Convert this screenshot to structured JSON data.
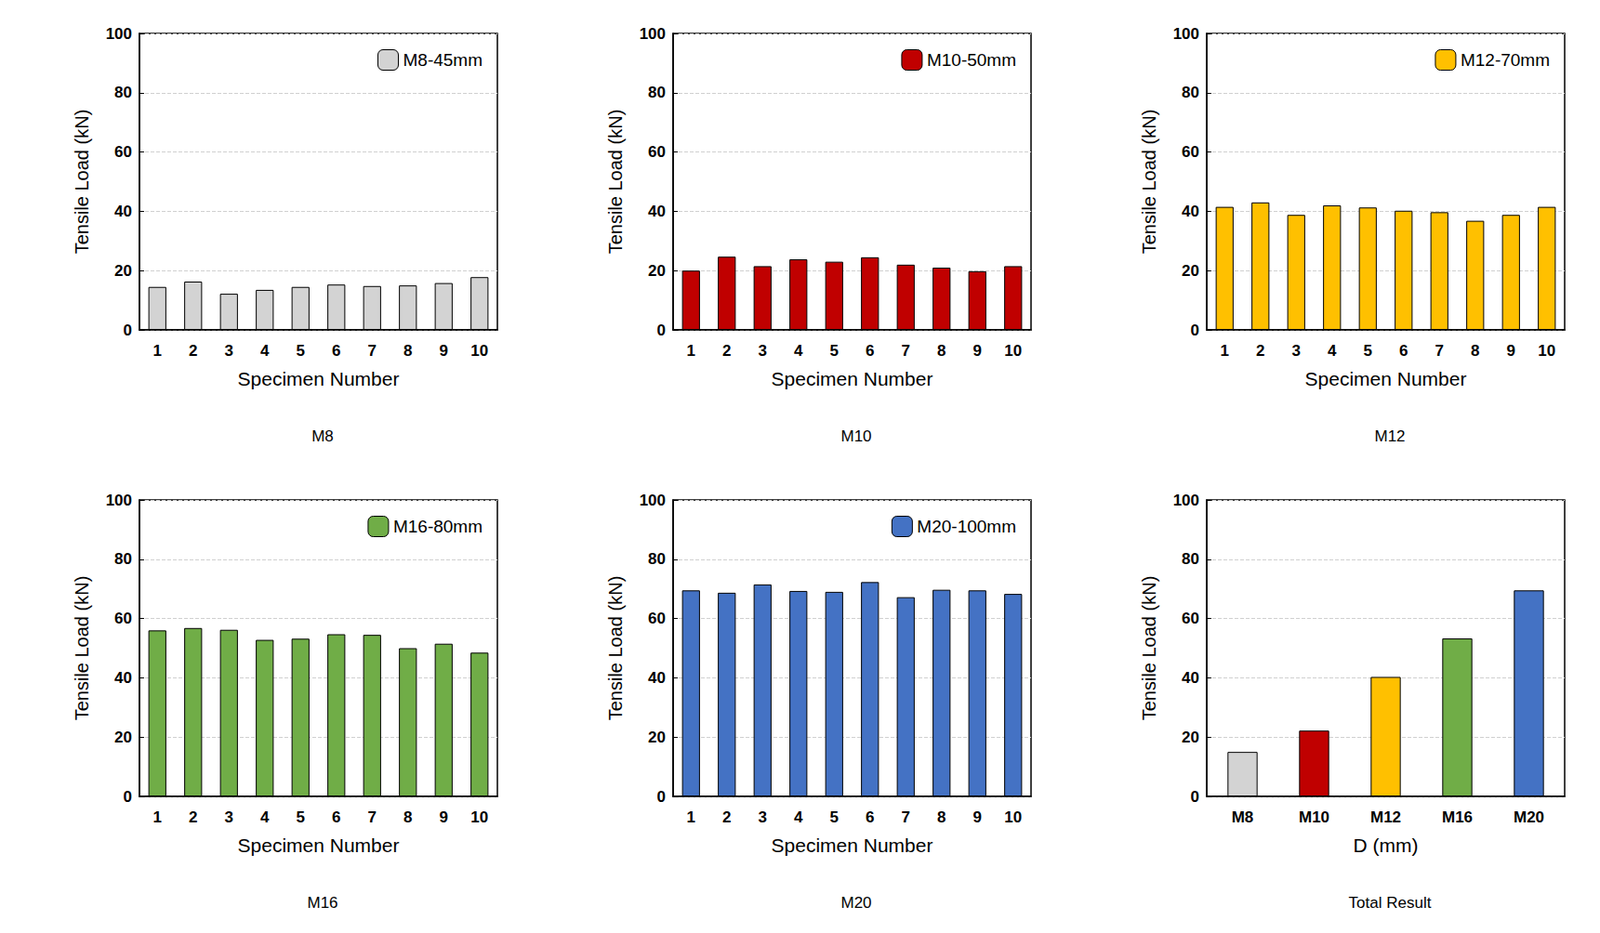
{
  "chart_data": [
    {
      "type": "bar",
      "title": "M8",
      "x_label": "Specimen Number",
      "y_label": "Tensile Load (kN)",
      "categories": [
        "1",
        "2",
        "3",
        "4",
        "5",
        "6",
        "7",
        "8",
        "9",
        "10"
      ],
      "series": [
        {
          "name": "M8-45mm",
          "color": "#d3d3d3",
          "values": [
            14.5,
            16.3,
            12.2,
            13.5,
            14.5,
            15.3,
            14.8,
            15.0,
            15.8,
            17.8
          ]
        }
      ],
      "ylim": [
        0,
        100
      ],
      "yticks": [
        0,
        20,
        40,
        60,
        80,
        100
      ],
      "grid": true,
      "legend": "upper right"
    },
    {
      "type": "bar",
      "title": "M10",
      "x_label": "Specimen Number",
      "y_label": "Tensile Load (kN)",
      "categories": [
        "1",
        "2",
        "3",
        "4",
        "5",
        "6",
        "7",
        "8",
        "9",
        "10"
      ],
      "series": [
        {
          "name": "M10-50mm",
          "color": "#c00000",
          "values": [
            20.0,
            24.7,
            21.5,
            23.8,
            23.0,
            24.5,
            22.0,
            21.0,
            19.8,
            21.5
          ]
        }
      ],
      "ylim": [
        0,
        100
      ],
      "yticks": [
        0,
        20,
        40,
        60,
        80,
        100
      ],
      "grid": true,
      "legend": "upper right"
    },
    {
      "type": "bar",
      "title": "M12",
      "x_label": "Specimen Number",
      "y_label": "Tensile Load (kN)",
      "categories": [
        "1",
        "2",
        "3",
        "4",
        "5",
        "6",
        "7",
        "8",
        "9",
        "10"
      ],
      "series": [
        {
          "name": "M12-70mm",
          "color": "#ffc000",
          "values": [
            41.5,
            43.0,
            38.8,
            42.0,
            41.3,
            40.2,
            39.7,
            36.8,
            38.8,
            41.5
          ]
        }
      ],
      "ylim": [
        0,
        100
      ],
      "yticks": [
        0,
        20,
        40,
        60,
        80,
        100
      ],
      "grid": true,
      "legend": "upper right"
    },
    {
      "type": "bar",
      "title": "M16",
      "x_label": "Specimen Number",
      "y_label": "Tensile Load (kN)",
      "categories": [
        "1",
        "2",
        "3",
        "4",
        "5",
        "6",
        "7",
        "8",
        "9",
        "10"
      ],
      "series": [
        {
          "name": "M16-80mm",
          "color": "#70ad47",
          "values": [
            56.0,
            56.8,
            56.2,
            52.8,
            53.2,
            54.7,
            54.5,
            50.0,
            51.5,
            48.5
          ]
        }
      ],
      "ylim": [
        0,
        100
      ],
      "yticks": [
        0,
        20,
        40,
        60,
        80,
        100
      ],
      "grid": true,
      "legend": "upper right"
    },
    {
      "type": "bar",
      "title": "M20",
      "x_label": "Specimen Number",
      "y_label": "Tensile Load (kN)",
      "categories": [
        "1",
        "2",
        "3",
        "4",
        "5",
        "6",
        "7",
        "8",
        "9",
        "10"
      ],
      "series": [
        {
          "name": "M20-100mm",
          "color": "#4472c4",
          "values": [
            69.5,
            68.7,
            71.5,
            69.3,
            69.0,
            72.3,
            67.2,
            69.7,
            69.5,
            68.3
          ]
        }
      ],
      "ylim": [
        0,
        100
      ],
      "yticks": [
        0,
        20,
        40,
        60,
        80,
        100
      ],
      "grid": true,
      "legend": "upper right"
    },
    {
      "type": "bar",
      "title": "Total Result",
      "x_label": "D (mm)",
      "y_label": "Tensile Load (kN)",
      "categories": [
        "M8",
        "M10",
        "M12",
        "M16",
        "M20"
      ],
      "values": [
        15.0,
        22.2,
        40.3,
        53.3,
        69.5
      ],
      "colors": [
        "#d3d3d3",
        "#c00000",
        "#ffc000",
        "#70ad47",
        "#4472c4"
      ],
      "ylim": [
        0,
        100
      ],
      "yticks": [
        0,
        20,
        40,
        60,
        80,
        100
      ],
      "grid": true
    }
  ]
}
